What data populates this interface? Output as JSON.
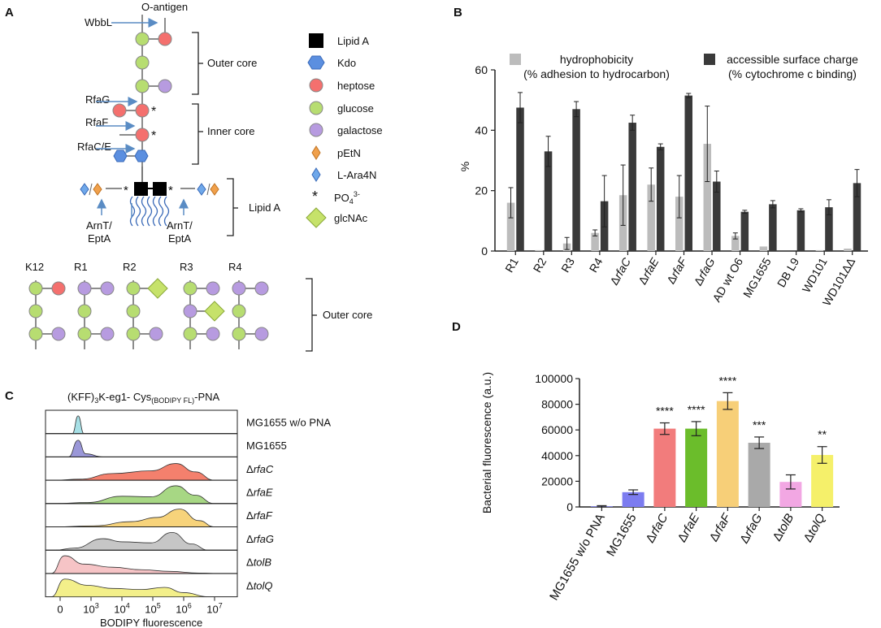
{
  "panels": {
    "a": "A",
    "b": "B",
    "c": "C",
    "d": "D"
  },
  "colors": {
    "heptose": "#f4706e",
    "glucose": "#b7dd71",
    "galactose": "#b79be0",
    "kdo": "#5b8fe0",
    "lipid_a": "#000000",
    "petn": "#f0a04b",
    "l_ara4n": "#6fa8ea",
    "glcnac": "#c6e26a",
    "arrow": "#5a8cc4",
    "hydro": "#bcbcbc",
    "charge": "#3a3a3a"
  },
  "panel_a": {
    "o_antigen": "O-antigen",
    "enzymes": {
      "wbbl": "WbbL",
      "rfag": "RfaG",
      "rfaf": "RfaF",
      "rfac": "RfaC/E",
      "arnt_left": [
        "ArnT/",
        "EptA"
      ],
      "arnt_right": [
        "ArnT/",
        "EptA"
      ]
    },
    "regions": {
      "outer": "Outer core",
      "inner": "Inner core",
      "lipid": "Lipid A",
      "outer_bottom": "Outer core"
    },
    "legend": [
      {
        "name": "Lipid A",
        "icon": "square-icon"
      },
      {
        "name": "Kdo",
        "icon": "hexagon-icon"
      },
      {
        "name": "heptose",
        "icon": "red-circle-icon"
      },
      {
        "name": "glucose",
        "icon": "green-circle-icon"
      },
      {
        "name": "galactose",
        "icon": "purple-circle-icon"
      },
      {
        "name": "pEtN",
        "icon": "orange-diamond-icon"
      },
      {
        "name": "L-Ara4N",
        "icon": "blue-diamond-icon"
      },
      {
        "name": "PO",
        "icon": "asterisk-icon",
        "sub": "4",
        "sup": "3-"
      },
      {
        "name": "glcNAc",
        "icon": "green-diamond-icon"
      }
    ],
    "star": "*",
    "strains": [
      "K12",
      "R1",
      "R2",
      "R3",
      "R4"
    ]
  },
  "panel_c": {
    "title_pre": "(KFF)",
    "title_sub": "3",
    "title_mid": "K-eg1- Cys",
    "title_sub2": "(BODIPY FL)",
    "title_post": "-PNA",
    "xlabel": "BODIPY fluorescence",
    "ticks": [
      "0",
      "10",
      "10",
      "10",
      "10",
      "10"
    ],
    "tick_sups": [
      "",
      "3",
      "4",
      "5",
      "6",
      "7"
    ],
    "rows": [
      {
        "label": "MG1655 w/o PNA",
        "prefix": "",
        "color": "#a7e0e6"
      },
      {
        "label": "MG1655",
        "prefix": "",
        "color": "#9a97d8"
      },
      {
        "label": "rfaC",
        "prefix": "Δ",
        "color": "#f4806d"
      },
      {
        "label": "rfaE",
        "prefix": "Δ",
        "color": "#a7d784"
      },
      {
        "label": "rfaF",
        "prefix": "Δ",
        "color": "#f7d37b"
      },
      {
        "label": "rfaG",
        "prefix": "Δ",
        "color": "#c6c6c6"
      },
      {
        "label": "tolB",
        "prefix": "Δ",
        "color": "#f6c4c6"
      },
      {
        "label": "tolQ",
        "prefix": "Δ",
        "color": "#f3ef8a"
      }
    ]
  },
  "chart_data": [
    {
      "type": "bar",
      "title": "",
      "xlabel": "",
      "ylabel": "%",
      "ylim": [
        0,
        60
      ],
      "yticks": [
        0,
        20,
        40,
        60
      ],
      "legend": [
        {
          "name": "hydrophobicity",
          "sub": "(% adhesion to hydrocarbon)"
        },
        {
          "name": "accessible surface charge",
          "sub": "(% cytochrome c binding)"
        }
      ],
      "categories": [
        "R1",
        "R2",
        "R3",
        "R4",
        "rfaC",
        "rfaE",
        "rfaF",
        "rfaG",
        "AD wt O6",
        "MG1655",
        "DB L9",
        "WD101",
        "WD101ΔΔ"
      ],
      "category_italic": [
        false,
        false,
        false,
        false,
        true,
        true,
        true,
        true,
        false,
        false,
        false,
        false,
        false
      ],
      "series": [
        {
          "name": "hydrophobicity",
          "values": [
            16,
            0.3,
            2.5,
            6,
            18.5,
            22,
            18,
            35.5,
            5,
            1.5,
            0,
            0.3,
            0.8
          ],
          "errors": [
            5,
            0,
            2,
            1,
            10,
            5.5,
            7,
            12.5,
            1,
            0,
            0,
            0,
            0
          ]
        },
        {
          "name": "accessible surface charge",
          "values": [
            47.5,
            33,
            47,
            16.5,
            42.5,
            34.5,
            51.5,
            23,
            13,
            15.5,
            13.5,
            14.5,
            22.5
          ],
          "errors": [
            5,
            5,
            2.5,
            8.5,
            2.5,
            1,
            0.7,
            3.5,
            0.5,
            1.2,
            0.5,
            2.5,
            4.5
          ]
        }
      ]
    },
    {
      "type": "bar",
      "title": "",
      "xlabel": "",
      "ylabel": "Bacterial fluorescence (a.u.)",
      "ylim": [
        0,
        100000
      ],
      "yticks": [
        0,
        20000,
        40000,
        60000,
        80000,
        100000
      ],
      "categories": [
        "MG1655 w/o PNA",
        "MG1655",
        "rfaC",
        "rfaE",
        "rfaF",
        "rfaG",
        "tolB",
        "tolQ"
      ],
      "category_italic": [
        false,
        false,
        true,
        true,
        true,
        true,
        true,
        true
      ],
      "values": [
        500,
        11500,
        61000,
        61000,
        82500,
        50000,
        19500,
        40500
      ],
      "errors": [
        500,
        1800,
        4500,
        5500,
        6500,
        4500,
        5500,
        6500
      ],
      "significance": [
        "",
        "",
        "****",
        "****",
        "****",
        "***",
        "",
        "**"
      ],
      "colors": [
        "#7c7cf0",
        "#7c7cf0",
        "#f27c7c",
        "#6bbd2b",
        "#f7cf78",
        "#a9a9a9",
        "#f2a7e3",
        "#f5f06a"
      ]
    }
  ]
}
